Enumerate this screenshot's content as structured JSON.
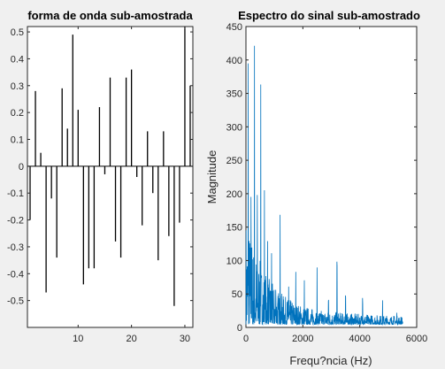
{
  "chart_data": [
    {
      "type": "bar",
      "title": "forma de onda sub-amostrada",
      "xlabel": "",
      "ylabel": "",
      "xlim": [
        0.5,
        31.5
      ],
      "ylim": [
        -0.6,
        0.52
      ],
      "xticks": [
        10,
        20,
        30
      ],
      "yticks": [
        -0.5,
        -0.4,
        -0.3,
        -0.2,
        -0.1,
        0,
        0.1,
        0.2,
        0.3,
        0.4,
        0.5
      ],
      "grid": false,
      "x": [
        1,
        2,
        3,
        4,
        5,
        6,
        7,
        8,
        9,
        10,
        11,
        12,
        13,
        14,
        15,
        16,
        17,
        18,
        19,
        20,
        21,
        22,
        23,
        24,
        25,
        26,
        27,
        28,
        29,
        30,
        31
      ],
      "values": [
        -0.2,
        0.28,
        0.05,
        -0.47,
        -0.12,
        -0.34,
        0.29,
        0.14,
        0.49,
        0.21,
        -0.44,
        -0.38,
        -0.38,
        0.22,
        -0.03,
        0.33,
        -0.28,
        -0.34,
        0.33,
        0.36,
        -0.04,
        -0.22,
        0.13,
        -0.1,
        -0.35,
        0.13,
        -0.26,
        -0.52,
        -0.21,
        0.52,
        0.3
      ]
    },
    {
      "type": "line",
      "title": "Espectro do sinal sub-amostrado",
      "xlabel": "Frequ?ncia (Hz)",
      "ylabel": "Magnitude",
      "xlim": [
        0,
        6000
      ],
      "ylim": [
        0,
        450
      ],
      "xticks": [
        0,
        2000,
        4000,
        6000
      ],
      "yticks": [
        0,
        50,
        100,
        150,
        200,
        250,
        300,
        350,
        400,
        450
      ],
      "grid": false,
      "color": "#0072bd",
      "x_range": [
        0,
        5512
      ],
      "peaks": [
        {
          "x": 80,
          "y": 450
        },
        {
          "x": 180,
          "y": 330
        },
        {
          "x": 300,
          "y": 450
        },
        {
          "x": 400,
          "y": 300
        },
        {
          "x": 520,
          "y": 440
        },
        {
          "x": 650,
          "y": 260
        },
        {
          "x": 760,
          "y": 150
        },
        {
          "x": 900,
          "y": 120
        },
        {
          "x": 1050,
          "y": 110
        },
        {
          "x": 1200,
          "y": 200
        },
        {
          "x": 1500,
          "y": 70
        },
        {
          "x": 1750,
          "y": 115
        },
        {
          "x": 2050,
          "y": 100
        },
        {
          "x": 2500,
          "y": 115
        },
        {
          "x": 2900,
          "y": 85
        },
        {
          "x": 3200,
          "y": 205
        },
        {
          "x": 3500,
          "y": 100
        },
        {
          "x": 4100,
          "y": 90
        },
        {
          "x": 4800,
          "y": 60
        },
        {
          "x": 5300,
          "y": 40
        }
      ],
      "noise_floor": 15
    }
  ]
}
